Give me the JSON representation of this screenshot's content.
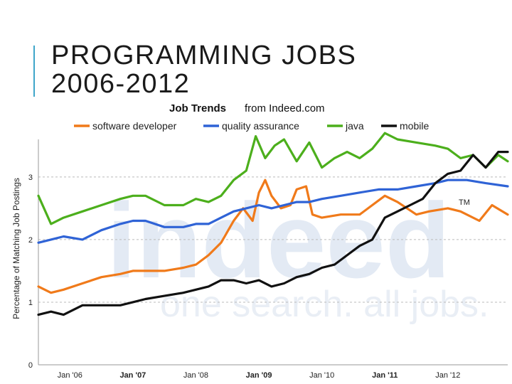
{
  "slide": {
    "title_line1": "PROGRAMMING JOBS",
    "title_line2": "2006-2012"
  },
  "colors": {
    "accent": "#3fa6c9",
    "software developer": "#f07a1a",
    "quality assurance": "#2f63d6",
    "java": "#4caf1c",
    "mobile": "#111111"
  },
  "chart_data": {
    "type": "line",
    "title_bold": "Job Trends",
    "title_rest": "from Indeed.com",
    "ylabel": "Percentage of Matching Job Postings",
    "xlabel": "",
    "ylim": [
      0,
      3.6
    ],
    "xlim": [
      2005.5,
      2012.95
    ],
    "yticks": [
      0,
      1,
      2,
      3
    ],
    "xticks": [
      {
        "label": "Jan '06",
        "x": 2006,
        "bold": false
      },
      {
        "label": "Jan '07",
        "x": 2007,
        "bold": true
      },
      {
        "label": "Jan '08",
        "x": 2008,
        "bold": false
      },
      {
        "label": "Jan '09",
        "x": 2009,
        "bold": true
      },
      {
        "label": "Jan '10",
        "x": 2010,
        "bold": false
      },
      {
        "label": "Jan '11",
        "x": 2011,
        "bold": true
      },
      {
        "label": "Jan '12",
        "x": 2012,
        "bold": false
      }
    ],
    "grid": "horizontal dashed",
    "legend_position": "top",
    "watermark": {
      "logo": "indeed",
      "tagline": "one search. all jobs.",
      "tm": "TM"
    },
    "series": [
      {
        "name": "software developer",
        "x": [
          2005.5,
          2005.7,
          2005.9,
          2006.2,
          2006.5,
          2006.8,
          2007.0,
          2007.2,
          2007.5,
          2007.8,
          2008.0,
          2008.2,
          2008.4,
          2008.6,
          2008.75,
          2008.9,
          2009.0,
          2009.1,
          2009.2,
          2009.35,
          2009.5,
          2009.6,
          2009.75,
          2009.85,
          2010.0,
          2010.3,
          2010.6,
          2010.8,
          2011.0,
          2011.2,
          2011.5,
          2011.7,
          2012.0,
          2012.2,
          2012.5,
          2012.7,
          2012.95
        ],
        "values": [
          1.25,
          1.15,
          1.2,
          1.3,
          1.4,
          1.45,
          1.5,
          1.5,
          1.5,
          1.55,
          1.6,
          1.75,
          1.95,
          2.3,
          2.5,
          2.3,
          2.75,
          2.95,
          2.7,
          2.5,
          2.55,
          2.8,
          2.85,
          2.4,
          2.35,
          2.4,
          2.4,
          2.55,
          2.7,
          2.6,
          2.4,
          2.45,
          2.5,
          2.45,
          2.3,
          2.55,
          2.4
        ]
      },
      {
        "name": "quality assurance",
        "x": [
          2005.5,
          2005.7,
          2005.9,
          2006.2,
          2006.5,
          2006.8,
          2007.0,
          2007.2,
          2007.5,
          2007.8,
          2008.0,
          2008.2,
          2008.4,
          2008.6,
          2008.8,
          2009.0,
          2009.2,
          2009.4,
          2009.6,
          2009.8,
          2010.0,
          2010.3,
          2010.6,
          2010.9,
          2011.2,
          2011.5,
          2011.8,
          2012.0,
          2012.3,
          2012.6,
          2012.95
        ],
        "values": [
          1.95,
          2.0,
          2.05,
          2.0,
          2.15,
          2.25,
          2.3,
          2.3,
          2.2,
          2.2,
          2.25,
          2.25,
          2.35,
          2.45,
          2.5,
          2.55,
          2.5,
          2.55,
          2.6,
          2.6,
          2.65,
          2.7,
          2.75,
          2.8,
          2.8,
          2.85,
          2.9,
          2.95,
          2.95,
          2.9,
          2.85
        ]
      },
      {
        "name": "java",
        "x": [
          2005.5,
          2005.7,
          2005.9,
          2006.2,
          2006.5,
          2006.8,
          2007.0,
          2007.2,
          2007.5,
          2007.8,
          2008.0,
          2008.2,
          2008.4,
          2008.6,
          2008.8,
          2008.95,
          2009.1,
          2009.25,
          2009.4,
          2009.6,
          2009.8,
          2010.0,
          2010.2,
          2010.4,
          2010.6,
          2010.8,
          2011.0,
          2011.2,
          2011.5,
          2011.8,
          2012.0,
          2012.2,
          2012.4,
          2012.6,
          2012.8,
          2012.95
        ],
        "values": [
          2.7,
          2.25,
          2.35,
          2.45,
          2.55,
          2.65,
          2.7,
          2.7,
          2.55,
          2.55,
          2.65,
          2.6,
          2.7,
          2.95,
          3.1,
          3.65,
          3.3,
          3.5,
          3.6,
          3.25,
          3.55,
          3.15,
          3.3,
          3.4,
          3.3,
          3.45,
          3.7,
          3.6,
          3.55,
          3.5,
          3.45,
          3.3,
          3.35,
          3.15,
          3.35,
          3.25
        ]
      },
      {
        "name": "mobile",
        "x": [
          2005.5,
          2005.7,
          2005.9,
          2006.2,
          2006.5,
          2006.8,
          2007.0,
          2007.2,
          2007.5,
          2007.8,
          2008.0,
          2008.2,
          2008.4,
          2008.6,
          2008.8,
          2009.0,
          2009.2,
          2009.4,
          2009.6,
          2009.8,
          2010.0,
          2010.2,
          2010.4,
          2010.6,
          2010.8,
          2011.0,
          2011.2,
          2011.4,
          2011.6,
          2011.8,
          2012.0,
          2012.2,
          2012.4,
          2012.6,
          2012.8,
          2012.95
        ],
        "values": [
          0.8,
          0.85,
          0.8,
          0.95,
          0.95,
          0.95,
          1.0,
          1.05,
          1.1,
          1.15,
          1.2,
          1.25,
          1.35,
          1.35,
          1.3,
          1.35,
          1.25,
          1.3,
          1.4,
          1.45,
          1.55,
          1.6,
          1.75,
          1.9,
          2.0,
          2.35,
          2.45,
          2.55,
          2.65,
          2.9,
          3.05,
          3.1,
          3.35,
          3.15,
          3.4,
          3.4
        ]
      }
    ]
  }
}
